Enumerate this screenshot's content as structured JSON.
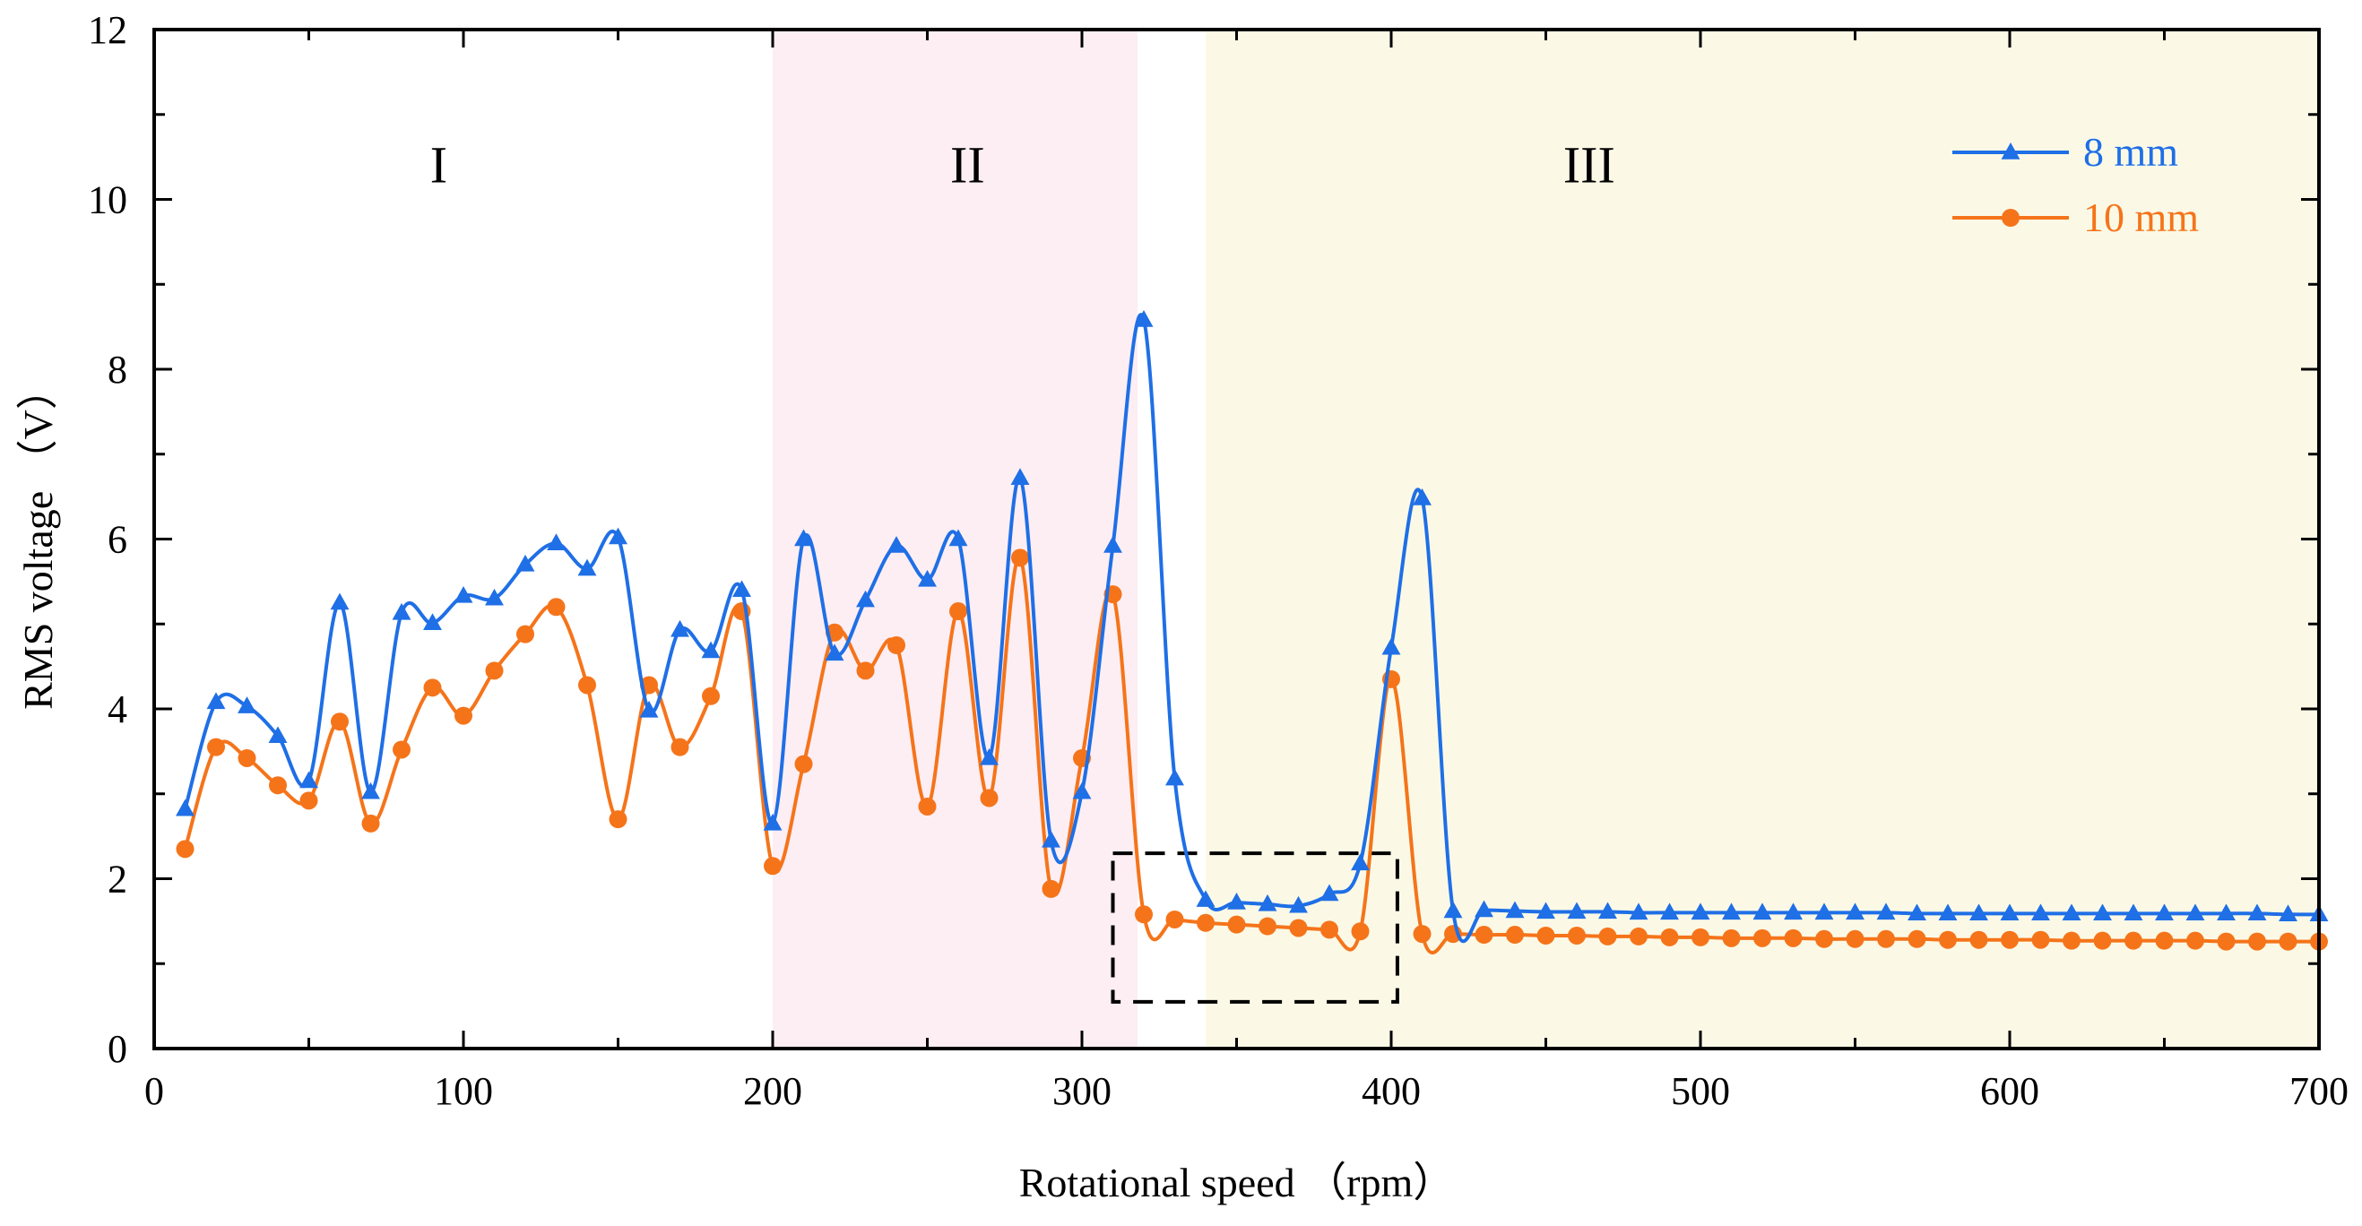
{
  "chart_data": {
    "type": "line",
    "xlabel": "Rotational speed （rpm）",
    "ylabel": "RMS voltage （V）",
    "xlim": [
      0,
      700
    ],
    "ylim": [
      0,
      12
    ],
    "xticks": [
      0,
      100,
      200,
      300,
      400,
      500,
      600,
      700
    ],
    "yticks": [
      0,
      2,
      4,
      6,
      8,
      10,
      12
    ],
    "grid": false,
    "legend_position": "top-right",
    "regions": [
      {
        "label": "I",
        "x_start": 0,
        "x_end": 200,
        "color": "#ffffff"
      },
      {
        "label": "II",
        "x_start": 200,
        "x_end": 318,
        "color": "#fdeef4"
      },
      {
        "label": "III",
        "x_start": 340,
        "x_end": 700,
        "color": "#fbf9e6"
      }
    ],
    "highlight_box": {
      "x_range": [
        310,
        402
      ],
      "y_range": [
        0.55,
        2.3
      ],
      "style": "dashed"
    },
    "x": [
      10,
      20,
      30,
      40,
      50,
      60,
      70,
      80,
      90,
      100,
      110,
      120,
      130,
      140,
      150,
      160,
      170,
      180,
      190,
      200,
      210,
      220,
      230,
      240,
      250,
      260,
      270,
      280,
      290,
      300,
      310,
      320,
      330,
      340,
      350,
      360,
      370,
      380,
      390,
      400,
      410,
      420,
      430,
      440,
      450,
      460,
      470,
      480,
      490,
      500,
      510,
      520,
      530,
      540,
      550,
      560,
      570,
      580,
      590,
      600,
      610,
      620,
      630,
      640,
      650,
      660,
      670,
      680,
      690,
      700
    ],
    "series": [
      {
        "name": "8 mm",
        "color": "#1f6fe6",
        "marker": "triangle",
        "values": [
          2.82,
          4.08,
          4.03,
          3.68,
          3.15,
          5.25,
          3.02,
          5.13,
          5.01,
          5.33,
          5.3,
          5.7,
          5.95,
          5.65,
          6.02,
          3.98,
          4.93,
          4.68,
          5.4,
          2.65,
          6.0,
          4.65,
          5.28,
          5.92,
          5.52,
          6.0,
          3.42,
          6.72,
          2.45,
          3.02,
          5.92,
          8.58,
          3.18,
          1.75,
          1.72,
          1.7,
          1.68,
          1.82,
          2.18,
          4.72,
          6.48,
          1.62,
          1.63,
          1.62,
          1.61,
          1.61,
          1.61,
          1.6,
          1.6,
          1.6,
          1.6,
          1.6,
          1.6,
          1.6,
          1.6,
          1.6,
          1.59,
          1.59,
          1.59,
          1.59,
          1.59,
          1.59,
          1.59,
          1.59,
          1.59,
          1.59,
          1.59,
          1.59,
          1.58,
          1.58
        ]
      },
      {
        "name": "10 mm",
        "color": "#f5741a",
        "marker": "circle",
        "values": [
          2.35,
          3.55,
          3.42,
          3.1,
          2.92,
          3.85,
          2.65,
          3.52,
          4.25,
          3.92,
          4.45,
          4.88,
          5.2,
          4.28,
          2.7,
          4.28,
          3.55,
          4.15,
          5.15,
          2.15,
          3.35,
          4.9,
          4.45,
          4.75,
          2.85,
          5.15,
          2.95,
          5.78,
          1.88,
          3.42,
          5.35,
          1.58,
          1.52,
          1.48,
          1.46,
          1.44,
          1.42,
          1.4,
          1.38,
          4.35,
          1.35,
          1.35,
          1.34,
          1.34,
          1.33,
          1.33,
          1.32,
          1.32,
          1.31,
          1.31,
          1.3,
          1.3,
          1.3,
          1.29,
          1.29,
          1.29,
          1.29,
          1.28,
          1.28,
          1.28,
          1.28,
          1.27,
          1.27,
          1.27,
          1.27,
          1.27,
          1.26,
          1.26,
          1.26,
          1.26
        ]
      }
    ]
  }
}
